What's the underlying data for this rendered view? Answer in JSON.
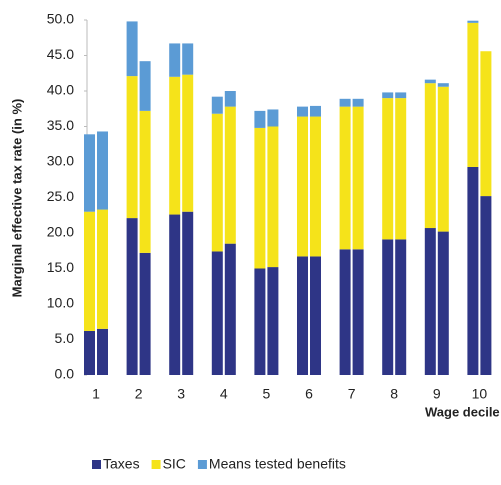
{
  "chart_data": {
    "type": "stacked-bar",
    "y_label": "Marginal effective tax rate (in %)",
    "x_label": "Wage decile",
    "categories": [
      "1",
      null,
      "2",
      null,
      "3",
      null,
      "4",
      null,
      "5",
      null,
      "6",
      null,
      "7",
      null,
      "8",
      null,
      "9",
      null,
      "10",
      null
    ],
    "series": [
      {
        "name": "Taxes",
        "color": "#2e3586",
        "values": [
          6.2,
          6.5,
          22.1,
          17.2,
          22.6,
          23.0,
          17.4,
          18.5,
          15.0,
          15.2,
          16.7,
          16.7,
          17.7,
          17.7,
          19.1,
          19.1,
          20.7,
          20.2,
          29.3,
          25.2
        ]
      },
      {
        "name": "SIC",
        "color": "#f5e31a",
        "values": [
          16.8,
          16.8,
          20.0,
          20.0,
          19.4,
          19.3,
          19.4,
          19.3,
          19.8,
          19.8,
          19.7,
          19.7,
          20.1,
          20.1,
          19.9,
          19.9,
          20.4,
          20.4,
          20.3,
          20.4
        ]
      },
      {
        "name": "Means tested benefits",
        "color": "#5b9bd5",
        "values": [
          10.9,
          11.0,
          7.7,
          7.0,
          4.7,
          4.4,
          2.4,
          2.2,
          2.4,
          2.4,
          1.4,
          1.5,
          1.1,
          1.1,
          0.8,
          0.8,
          0.5,
          0.5,
          0.3,
          0
        ]
      }
    ],
    "ylim": [
      0,
      50
    ],
    "yticks": [
      {
        "value": 0,
        "label": "0.0"
      },
      {
        "value": 5,
        "label": "5.0"
      },
      {
        "value": 10,
        "label": "10.0"
      },
      {
        "value": 15,
        "label": "15.0"
      },
      {
        "value": 20,
        "label": "20.0"
      },
      {
        "value": 25,
        "label": "25.0"
      },
      {
        "value": 30,
        "label": "30.0"
      },
      {
        "value": 35,
        "label": "35.0"
      },
      {
        "value": 40,
        "label": "40.0"
      },
      {
        "value": 45,
        "label": "45.0"
      },
      {
        "value": 50,
        "label": "50.0"
      }
    ]
  }
}
